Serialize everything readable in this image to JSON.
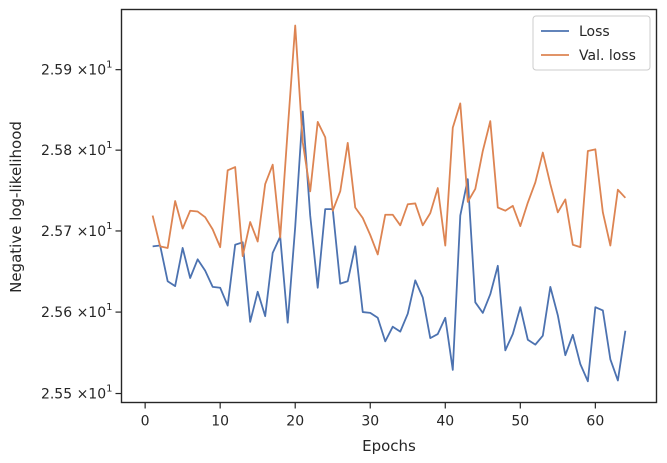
{
  "chart_data": {
    "type": "line",
    "xlabel": "Epochs",
    "ylabel": "Negative log-likelihood",
    "xlim": [
      -3.15,
      68.15
    ],
    "ylim": [
      25.489,
      25.975
    ],
    "y_scale": "log",
    "grid": false,
    "legend_position": "top-right",
    "x_ticks": [
      0,
      10,
      20,
      30,
      40,
      50,
      60
    ],
    "x_tick_labels": [
      "0",
      "10",
      "20",
      "30",
      "40",
      "50",
      "60"
    ],
    "y_ticks": [
      25.5,
      25.6,
      25.7,
      25.8,
      25.9
    ],
    "y_tick_labels": [
      {
        "base": "2.55",
        "mult": "×10",
        "exp": "1"
      },
      {
        "base": "2.56",
        "mult": "×10",
        "exp": "1"
      },
      {
        "base": "2.57",
        "mult": "×10",
        "exp": "1"
      },
      {
        "base": "2.58",
        "mult": "×10",
        "exp": "1"
      },
      {
        "base": "2.59",
        "mult": "×10",
        "exp": "1"
      }
    ],
    "x": [
      1,
      2,
      3,
      4,
      5,
      6,
      7,
      8,
      9,
      10,
      11,
      12,
      13,
      14,
      15,
      16,
      17,
      18,
      19,
      20,
      21,
      22,
      23,
      24,
      25,
      26,
      27,
      28,
      29,
      30,
      31,
      32,
      33,
      34,
      35,
      36,
      37,
      38,
      39,
      40,
      41,
      42,
      43,
      44,
      45,
      46,
      47,
      48,
      49,
      50,
      51,
      52,
      53,
      54,
      55,
      56,
      57,
      58,
      59,
      60,
      61,
      62,
      63,
      64
    ],
    "series": [
      {
        "name": "Loss",
        "color": "#4c72b0",
        "values": [
          25.681,
          25.682,
          25.638,
          25.632,
          25.679,
          25.642,
          25.665,
          25.651,
          25.631,
          25.63,
          25.608,
          25.683,
          25.686,
          25.588,
          25.625,
          25.595,
          25.673,
          25.693,
          25.587,
          25.705,
          25.848,
          25.719,
          25.63,
          25.727,
          25.727,
          25.635,
          25.638,
          25.681,
          25.6,
          25.599,
          25.593,
          25.564,
          25.582,
          25.576,
          25.598,
          25.639,
          25.618,
          25.568,
          25.573,
          25.593,
          25.529,
          25.719,
          25.764,
          25.612,
          25.599,
          25.622,
          25.657,
          25.553,
          25.573,
          25.606,
          25.566,
          25.56,
          25.571,
          25.631,
          25.596,
          25.547,
          25.572,
          25.536,
          25.515,
          25.606,
          25.602,
          25.542,
          25.516,
          25.577
        ]
      },
      {
        "name": "Val. loss",
        "color": "#dd8452",
        "values": [
          25.719,
          25.681,
          25.679,
          25.737,
          25.703,
          25.725,
          25.724,
          25.717,
          25.702,
          25.68,
          25.775,
          25.779,
          25.669,
          25.711,
          25.687,
          25.758,
          25.782,
          25.692,
          25.825,
          25.955,
          25.81,
          25.749,
          25.835,
          25.816,
          25.725,
          25.749,
          25.809,
          25.729,
          25.716,
          25.695,
          25.671,
          25.72,
          25.72,
          25.707,
          25.733,
          25.734,
          25.707,
          25.722,
          25.753,
          25.682,
          25.828,
          25.858,
          25.736,
          25.752,
          25.799,
          25.836,
          25.729,
          25.725,
          25.731,
          25.706,
          25.735,
          25.76,
          25.797,
          25.758,
          25.723,
          25.739,
          25.683,
          25.68,
          25.799,
          25.801,
          25.723,
          25.682,
          25.751,
          25.741
        ]
      }
    ]
  }
}
